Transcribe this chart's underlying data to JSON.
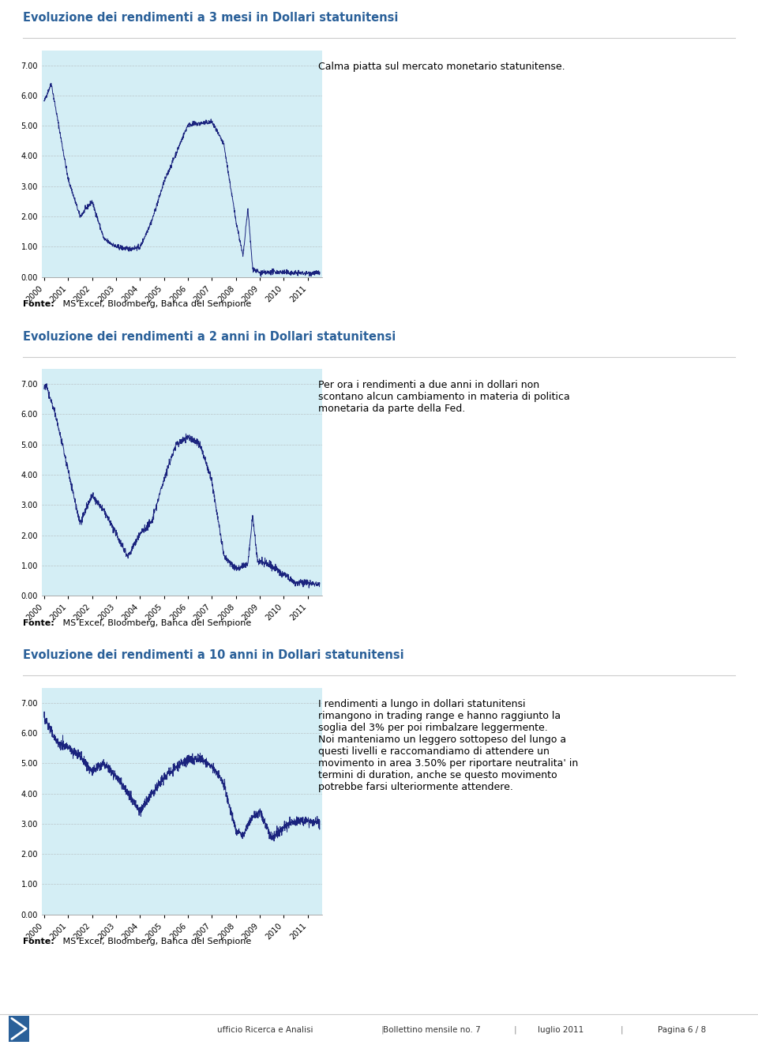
{
  "title1": "Evoluzione dei rendimenti a 3 mesi in Dollari statunitensi",
  "title2": "Evoluzione dei rendimenti a 2 anni in Dollari statunitensi",
  "title3": "Evoluzione dei rendimenti a 10 anni in Dollari statunitensi",
  "text1": "Calma piatta sul mercato monetario statunitense.",
  "text2": "Per ora i rendimenti a due anni in dollari non\nscontano alcun cambiamento in materia di politica\nmonetaria da parte della Fed.",
  "text3": "I rendimenti a lungo in dollari statunitensi\nrimangono in trading range e hanno raggiunto la\nsoglia del 3% per poi rimbalzare leggermente.\nNoi manteniamo un leggero sottopeso del lungo a\nquesti livelli e raccomandiamo di attendere un\nmovimento in area 3.50% per riportare neutralita' in\ntermini di duration, anche se questo movimento\npotrebbe farsi ulteriormente attendere.",
  "fonte": "Fonte: MS Excel, Bloomberg, Banca del Sempione",
  "footer_left": "ufficio Ricerca e Analisi",
  "footer_center": "Bollettino mensile no. 7",
  "footer_right": "luglio 2011",
  "footer_page": "Pagina 6 / 8",
  "title_color": "#2a6099",
  "line_color": "#1a237e",
  "grid_color": "#aaaaaa",
  "ytick_labels": [
    "0.00",
    "1.00",
    "2.00",
    "3.00",
    "4.00",
    "5.00",
    "6.00",
    "7.00"
  ],
  "ytick_vals": [
    0.0,
    1.0,
    2.0,
    3.0,
    4.0,
    5.0,
    6.0,
    7.0
  ],
  "xtick_labels": [
    "2000",
    "2001",
    "2002",
    "2003",
    "2004",
    "2005",
    "2006",
    "2007",
    "2008",
    "2009",
    "2010",
    "2011"
  ],
  "ylim": [
    0,
    7.5
  ],
  "chart_bg": "#d4eef5"
}
